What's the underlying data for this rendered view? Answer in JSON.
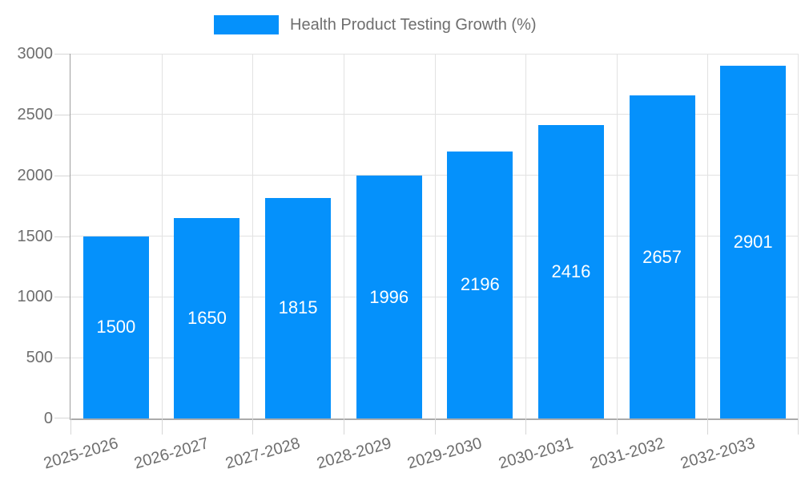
{
  "chart_data": {
    "type": "bar",
    "title": "Health Product Testing Growth (%)",
    "categories": [
      "2025-2026",
      "2026-2027",
      "2027-2028",
      "2028-2029",
      "2029-2030",
      "2030-2031",
      "2031-2032",
      "2032-2033"
    ],
    "values": [
      1500,
      1650,
      1815,
      1996,
      2196,
      2416,
      2657,
      2901
    ],
    "xlabel": "",
    "ylabel": "",
    "ylim": [
      0,
      3000
    ],
    "yticks": [
      0,
      500,
      1000,
      1500,
      2000,
      2500,
      3000
    ],
    "grid": true,
    "legend_position": "top",
    "bar_color": "#0591fb",
    "value_label_color": "#ffffff",
    "axis_text_color": "#6e6e6e",
    "gridline_color": "#e2e2e2"
  }
}
